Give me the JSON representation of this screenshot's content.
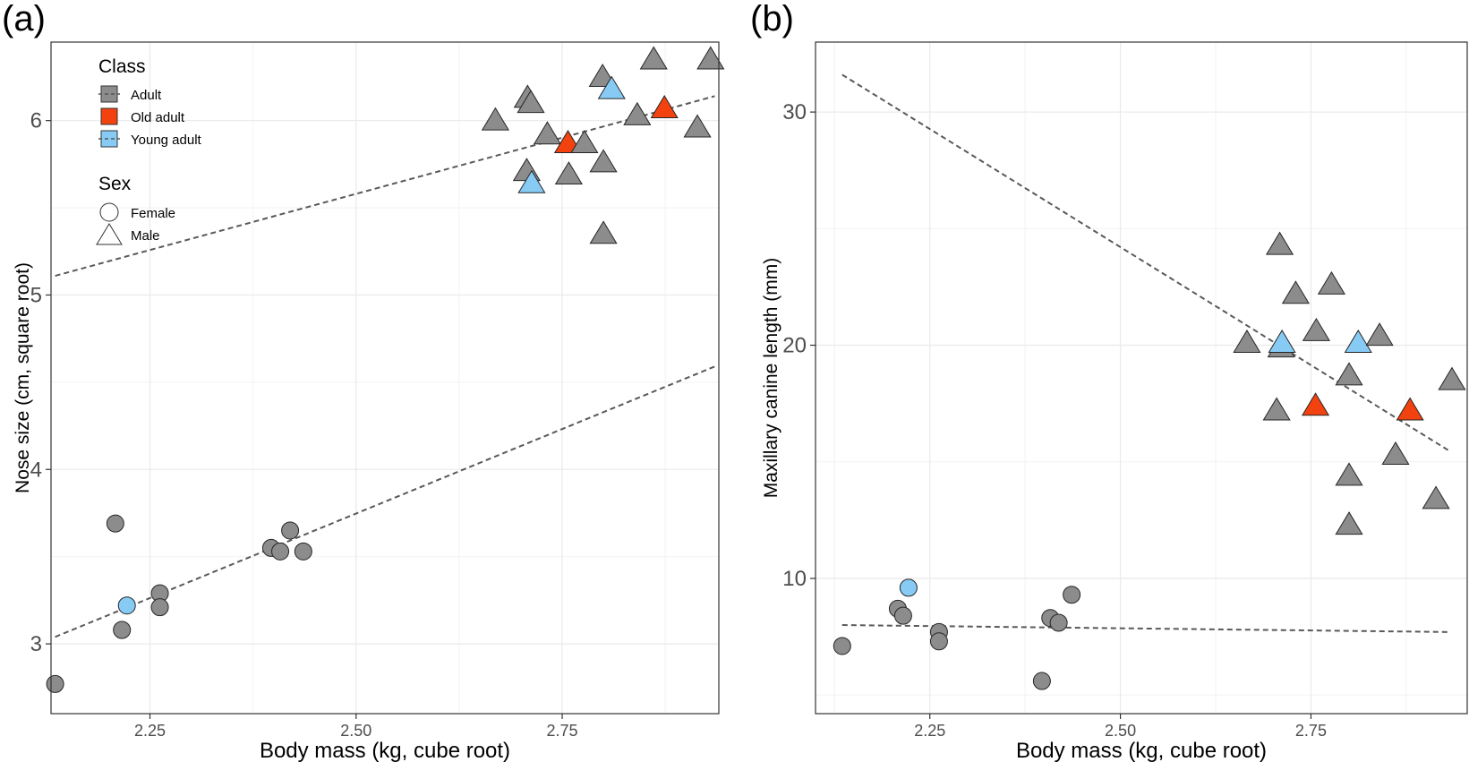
{
  "colors": {
    "Adult": "#8c8c8c",
    "Old adult": "#f2420f",
    "Young adult": "#87cbf5"
  },
  "legend": {
    "class_title": "Class",
    "class_items": [
      "Adult",
      "Old adult",
      "Young adult"
    ],
    "sex_title": "Sex",
    "sex_items": [
      "Female",
      "Male"
    ]
  },
  "chart_data": [
    {
      "panel": "(a)",
      "type": "scatter",
      "xlabel": "Body mass (kg, cube root)",
      "ylabel": "Nose size (cm, square root)",
      "xlim": [
        2.13,
        2.94
      ],
      "ylim": [
        2.6,
        6.45
      ],
      "x_ticks": [
        2.25,
        2.5,
        2.75
      ],
      "x_tick_labels": [
        "2.25",
        "2.50",
        "2.75"
      ],
      "y_ticks": [
        3,
        4,
        5,
        6
      ],
      "y_tick_labels": [
        "3",
        "4",
        "5",
        "6"
      ],
      "grid": true,
      "legend_position": "top-left",
      "points": [
        {
          "x": 2.135,
          "y": 2.77,
          "class": "Adult",
          "sex": "Female"
        },
        {
          "x": 2.208,
          "y": 3.69,
          "class": "Adult",
          "sex": "Female"
        },
        {
          "x": 2.216,
          "y": 3.08,
          "class": "Adult",
          "sex": "Female"
        },
        {
          "x": 2.222,
          "y": 3.22,
          "class": "Young adult",
          "sex": "Female"
        },
        {
          "x": 2.262,
          "y": 3.29,
          "class": "Adult",
          "sex": "Female"
        },
        {
          "x": 2.262,
          "y": 3.21,
          "class": "Adult",
          "sex": "Female"
        },
        {
          "x": 2.397,
          "y": 3.55,
          "class": "Adult",
          "sex": "Female"
        },
        {
          "x": 2.408,
          "y": 3.53,
          "class": "Adult",
          "sex": "Female"
        },
        {
          "x": 2.42,
          "y": 3.65,
          "class": "Adult",
          "sex": "Female"
        },
        {
          "x": 2.436,
          "y": 3.53,
          "class": "Adult",
          "sex": "Female"
        },
        {
          "x": 2.669,
          "y": 6.0,
          "class": "Adult",
          "sex": "Male"
        },
        {
          "x": 2.708,
          "y": 6.13,
          "class": "Adult",
          "sex": "Male"
        },
        {
          "x": 2.712,
          "y": 6.1,
          "class": "Adult",
          "sex": "Male"
        },
        {
          "x": 2.707,
          "y": 5.71,
          "class": "Adult",
          "sex": "Male"
        },
        {
          "x": 2.713,
          "y": 5.64,
          "class": "Young adult",
          "sex": "Male"
        },
        {
          "x": 2.732,
          "y": 5.92,
          "class": "Adult",
          "sex": "Male"
        },
        {
          "x": 2.757,
          "y": 5.87,
          "class": "Old adult",
          "sex": "Male"
        },
        {
          "x": 2.758,
          "y": 5.69,
          "class": "Adult",
          "sex": "Male"
        },
        {
          "x": 2.777,
          "y": 5.87,
          "class": "Adult",
          "sex": "Male"
        },
        {
          "x": 2.799,
          "y": 6.25,
          "class": "Adult",
          "sex": "Male"
        },
        {
          "x": 2.8,
          "y": 5.76,
          "class": "Adult",
          "sex": "Male"
        },
        {
          "x": 2.8,
          "y": 5.35,
          "class": "Adult",
          "sex": "Male"
        },
        {
          "x": 2.81,
          "y": 6.18,
          "class": "Young adult",
          "sex": "Male"
        },
        {
          "x": 2.841,
          "y": 6.03,
          "class": "Adult",
          "sex": "Male"
        },
        {
          "x": 2.861,
          "y": 6.35,
          "class": "Adult",
          "sex": "Male"
        },
        {
          "x": 2.874,
          "y": 6.07,
          "class": "Old adult",
          "sex": "Male"
        },
        {
          "x": 2.914,
          "y": 5.96,
          "class": "Adult",
          "sex": "Male"
        },
        {
          "x": 2.93,
          "y": 6.35,
          "class": "Adult",
          "sex": "Male"
        }
      ],
      "trend_lines": [
        {
          "x": [
            2.135,
            2.935
          ],
          "y": [
            5.11,
            6.14
          ]
        },
        {
          "x": [
            2.135,
            2.935
          ],
          "y": [
            3.04,
            4.59
          ]
        }
      ]
    },
    {
      "panel": "(b)",
      "type": "scatter",
      "xlabel": "Body mass (kg, cube root)",
      "ylabel": "Maxillary canine length (mm)",
      "xlim": [
        2.1,
        2.955
      ],
      "ylim": [
        4.2,
        33
      ],
      "x_ticks": [
        2.25,
        2.5,
        2.75
      ],
      "x_tick_labels": [
        "2.25",
        "2.50",
        "2.75"
      ],
      "y_ticks": [
        10,
        20,
        30
      ],
      "y_tick_labels": [
        "10",
        "20",
        "30"
      ],
      "grid": true,
      "points": [
        {
          "x": 2.135,
          "y": 7.1,
          "class": "Adult",
          "sex": "Female"
        },
        {
          "x": 2.208,
          "y": 8.7,
          "class": "Adult",
          "sex": "Female"
        },
        {
          "x": 2.215,
          "y": 8.4,
          "class": "Adult",
          "sex": "Female"
        },
        {
          "x": 2.222,
          "y": 9.6,
          "class": "Young adult",
          "sex": "Female"
        },
        {
          "x": 2.262,
          "y": 7.7,
          "class": "Adult",
          "sex": "Female"
        },
        {
          "x": 2.262,
          "y": 7.3,
          "class": "Adult",
          "sex": "Female"
        },
        {
          "x": 2.397,
          "y": 5.6,
          "class": "Adult",
          "sex": "Female"
        },
        {
          "x": 2.408,
          "y": 8.3,
          "class": "Adult",
          "sex": "Female"
        },
        {
          "x": 2.419,
          "y": 8.1,
          "class": "Adult",
          "sex": "Female"
        },
        {
          "x": 2.436,
          "y": 9.3,
          "class": "Adult",
          "sex": "Female"
        },
        {
          "x": 2.666,
          "y": 20.1,
          "class": "Adult",
          "sex": "Male"
        },
        {
          "x": 2.705,
          "y": 17.2,
          "class": "Adult",
          "sex": "Male"
        },
        {
          "x": 2.709,
          "y": 24.3,
          "class": "Adult",
          "sex": "Male"
        },
        {
          "x": 2.711,
          "y": 19.9,
          "class": "Adult",
          "sex": "Male"
        },
        {
          "x": 2.712,
          "y": 20.1,
          "class": "Young adult",
          "sex": "Male"
        },
        {
          "x": 2.73,
          "y": 22.2,
          "class": "Adult",
          "sex": "Male"
        },
        {
          "x": 2.756,
          "y": 17.4,
          "class": "Old adult",
          "sex": "Male"
        },
        {
          "x": 2.757,
          "y": 20.6,
          "class": "Adult",
          "sex": "Male"
        },
        {
          "x": 2.777,
          "y": 22.6,
          "class": "Adult",
          "sex": "Male"
        },
        {
          "x": 2.8,
          "y": 18.7,
          "class": "Adult",
          "sex": "Male"
        },
        {
          "x": 2.8,
          "y": 14.4,
          "class": "Adult",
          "sex": "Male"
        },
        {
          "x": 2.8,
          "y": 12.3,
          "class": "Adult",
          "sex": "Male"
        },
        {
          "x": 2.812,
          "y": 20.1,
          "class": "Young adult",
          "sex": "Male"
        },
        {
          "x": 2.84,
          "y": 20.4,
          "class": "Adult",
          "sex": "Male"
        },
        {
          "x": 2.861,
          "y": 15.3,
          "class": "Adult",
          "sex": "Male"
        },
        {
          "x": 2.88,
          "y": 17.2,
          "class": "Old adult",
          "sex": "Male"
        },
        {
          "x": 2.914,
          "y": 13.4,
          "class": "Adult",
          "sex": "Male"
        },
        {
          "x": 2.935,
          "y": 18.5,
          "class": "Adult",
          "sex": "Male"
        }
      ],
      "trend_lines": [
        {
          "x": [
            2.135,
            2.93
          ],
          "y": [
            31.6,
            15.5
          ]
        },
        {
          "x": [
            2.135,
            2.93
          ],
          "y": [
            8.0,
            7.7
          ]
        }
      ]
    }
  ]
}
